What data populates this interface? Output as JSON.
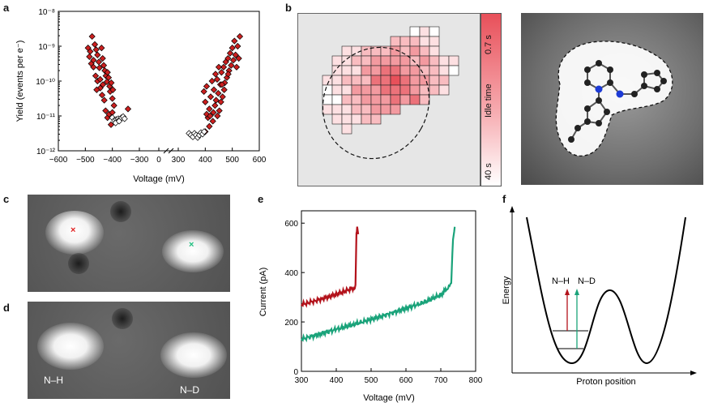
{
  "panels": {
    "a": "a",
    "b": "b",
    "c": "c",
    "d": "d",
    "e": "e",
    "f": "f"
  },
  "chart_data": [
    {
      "id": "a",
      "type": "scatter",
      "title": "",
      "xlabel": "Voltage (mV)",
      "ylabel": "Yield (events per e⁻)",
      "xlim": [
        -600,
        600
      ],
      "ylim_log10": [
        -12,
        -8
      ],
      "x_ticks": [
        "−600",
        "−500",
        "−400",
        "−300",
        "0",
        "300",
        "400",
        "500",
        "600"
      ],
      "x_tick_values": [
        -600,
        -500,
        -400,
        -300,
        0,
        300,
        400,
        500,
        600
      ],
      "y_ticks": [
        "10⁻¹²",
        "10⁻¹¹",
        "10⁻¹⁰",
        "10⁻⁹",
        "10⁻⁸"
      ],
      "y_tick_values": [
        -12,
        -11,
        -10,
        -9,
        -8
      ],
      "axis_break": true,
      "series": [
        {
          "name": "filled (red diamonds)",
          "color": "#cc1f1f",
          "marker": "diamond-filled",
          "points": [
            [
              -475,
              -8.72
            ],
            [
              -465,
              -8.95
            ],
            [
              -460,
              -9.1
            ],
            [
              -455,
              -9.25
            ],
            [
              -450,
              -9.45
            ],
            [
              -448,
              -9.62
            ],
            [
              -440,
              -9.05
            ],
            [
              -436,
              -9.35
            ],
            [
              -432,
              -9.55
            ],
            [
              -428,
              -9.7
            ],
            [
              -424,
              -9.85
            ],
            [
              -420,
              -10.02
            ],
            [
              -418,
              -9.75
            ],
            [
              -414,
              -9.9
            ],
            [
              -410,
              -10.15
            ],
            [
              -408,
              -10.3
            ],
            [
              -404,
              -10.05
            ],
            [
              -400,
              -10.5
            ],
            [
              -398,
              -10.25
            ],
            [
              -394,
              -10.7
            ],
            [
              -490,
              -9.05
            ],
            [
              -485,
              -9.3
            ],
            [
              -478,
              -9.5
            ],
            [
              -470,
              -9.6
            ],
            [
              -462,
              -9.85
            ],
            [
              -455,
              -10.0
            ],
            [
              -445,
              -10.2
            ],
            [
              -438,
              -10.4
            ],
            [
              -430,
              -10.55
            ],
            [
              -425,
              -10.85
            ],
            [
              -418,
              -11.05
            ],
            [
              -412,
              -10.95
            ],
            [
              -445,
              -9.95
            ],
            [
              -435,
              -10.1
            ],
            [
              -342,
              -10.8
            ],
            [
              -405,
              -11.25
            ],
            [
              -400,
              -10.9
            ],
            [
              -458,
              -10.25
            ],
            [
              -470,
              -9.4
            ],
            [
              -482,
              -9.15
            ],
            [
              395,
              -10.3
            ],
            [
              400,
              -10.6
            ],
            [
              405,
              -10.15
            ],
            [
              410,
              -11.05
            ],
            [
              415,
              -10.8
            ],
            [
              420,
              -10.45
            ],
            [
              425,
              -10.0
            ],
            [
              428,
              -11.15
            ],
            [
              432,
              -10.25
            ],
            [
              436,
              -10.7
            ],
            [
              440,
              -10.55
            ],
            [
              444,
              -9.95
            ],
            [
              448,
              -10.35
            ],
            [
              452,
              -10.85
            ],
            [
              456,
              -10.1
            ],
            [
              460,
              -9.75
            ],
            [
              464,
              -10.45
            ],
            [
              468,
              -9.6
            ],
            [
              472,
              -10.05
            ],
            [
              476,
              -9.45
            ],
            [
              480,
              -9.9
            ],
            [
              484,
              -9.35
            ],
            [
              488,
              -9.7
            ],
            [
              492,
              -9.2
            ],
            [
              496,
              -9.55
            ],
            [
              500,
              -9.05
            ],
            [
              504,
              -9.4
            ],
            [
              508,
              -8.85
            ],
            [
              512,
              -9.25
            ],
            [
              516,
              -9.6
            ],
            [
              520,
              -9.0
            ],
            [
              524,
              -9.35
            ],
            [
              528,
              -8.72
            ],
            [
              415,
              -11.3
            ],
            [
              430,
              -10.9
            ],
            [
              445,
              -11.0
            ],
            [
              458,
              -10.6
            ],
            [
              470,
              -10.25
            ],
            [
              485,
              -9.8
            ],
            [
              405,
              -10.95
            ],
            [
              400,
              -11.45
            ],
            [
              418,
              -11.0
            ],
            [
              438,
              -9.8
            ],
            [
              450,
              -9.6
            ],
            [
              462,
              -10.1
            ]
          ]
        },
        {
          "name": "open (white diamonds)",
          "color": "#ffffff",
          "marker": "diamond-open",
          "points": [
            [
              -400,
              -11.05
            ],
            [
              -392,
              -11.12
            ],
            [
              -385,
              -11.1
            ],
            [
              -378,
              -11.08
            ],
            [
              -372,
              -11.1
            ],
            [
              -366,
              -11.05
            ],
            [
              -360,
              -11.02
            ],
            [
              -355,
              -11.08
            ],
            [
              -388,
              -11.2
            ],
            [
              -375,
              -11.15
            ],
            [
              340,
              -11.5
            ],
            [
              347,
              -11.55
            ],
            [
              354,
              -11.6
            ],
            [
              360,
              -11.5
            ],
            [
              366,
              -11.55
            ],
            [
              372,
              -11.62
            ],
            [
              378,
              -11.55
            ],
            [
              384,
              -11.48
            ],
            [
              390,
              -11.52
            ],
            [
              396,
              -11.45
            ]
          ]
        }
      ]
    },
    {
      "id": "e",
      "type": "line",
      "title": "",
      "xlabel": "Voltage (mV)",
      "ylabel": "Current (pA)",
      "xlim": [
        300,
        800
      ],
      "ylim": [
        0,
        650
      ],
      "x_ticks": [
        "300",
        "400",
        "500",
        "600",
        "700",
        "800"
      ],
      "x_tick_values": [
        300,
        400,
        500,
        600,
        700,
        800
      ],
      "y_ticks": [
        "0",
        "200",
        "400",
        "600"
      ],
      "y_tick_values": [
        0,
        200,
        400,
        600
      ],
      "series": [
        {
          "name": "N–H",
          "color": "#b3121b",
          "x": [
            300,
            320,
            340,
            360,
            380,
            400,
            420,
            440,
            455,
            458,
            460,
            463
          ],
          "values": [
            270,
            278,
            286,
            294,
            303,
            312,
            322,
            333,
            340,
            560,
            580,
            555
          ]
        },
        {
          "name": "N–D",
          "color": "#1aa37a",
          "x": [
            300,
            350,
            400,
            450,
            500,
            550,
            600,
            650,
            700,
            725,
            730,
            735,
            740
          ],
          "values": [
            130,
            150,
            170,
            190,
            210,
            232,
            255,
            278,
            310,
            345,
            360,
            540,
            585
          ]
        }
      ]
    },
    {
      "id": "f",
      "type": "line",
      "title": "",
      "xlabel": "Proton position",
      "ylabel": "Energy",
      "annotations": [
        "N–H",
        "N–D"
      ],
      "series": [
        {
          "name": "double-well potential",
          "color": "#000000"
        }
      ],
      "levels": [
        "N–H ground level",
        "N–D ground level"
      ]
    }
  ],
  "panel_b": {
    "colorbar_top": "0.7 s",
    "colorbar_bottom": "40 s",
    "colorbar_label": "Idle time",
    "colors": {
      "max": "#e8505a",
      "min": "#ffffff"
    },
    "grid_rows": [
      "..........xxx....",
      "........xxxxx....",
      "...xxxxxxxxxx....",
      "..xxxxxxxxxxxxx..",
      "..xxxxxxxxxxxxx..",
      ".xxxxxxxxxxxxx...",
      ".xxxxxxxxxxxxx...",
      ".xxxxxxxxxxx.....",
      ".xxxxxxxx........",
      "..xxxxx..........",
      "...x............."
    ]
  },
  "panel_c": {
    "markers": [
      {
        "symbol": "×",
        "color": "#e02020"
      },
      {
        "symbol": "×",
        "color": "#20c080"
      }
    ]
  },
  "panel_d": {
    "labels": [
      "N–H",
      "N–D"
    ]
  }
}
